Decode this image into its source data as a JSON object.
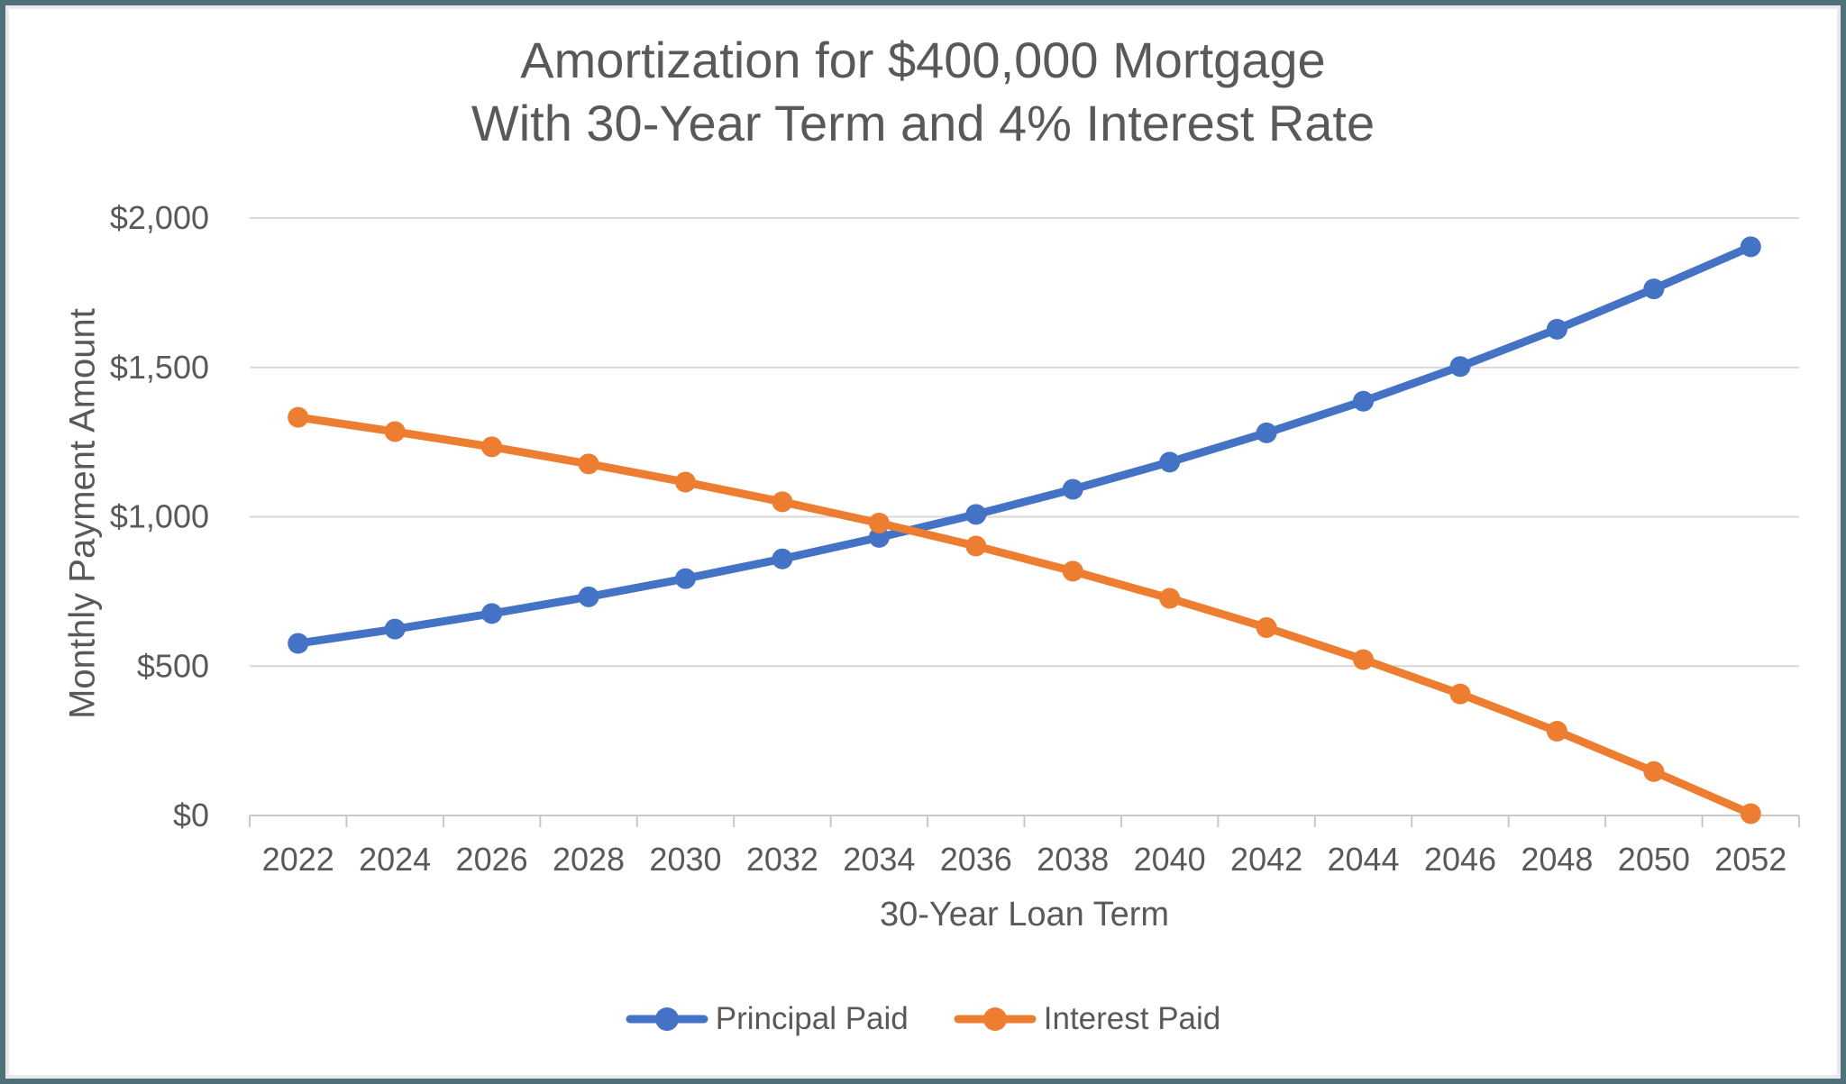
{
  "frame": {
    "border_color": "#4e7078",
    "inner_edge_color": "#e9eaeb",
    "background": "#ffffff"
  },
  "chart_data": {
    "type": "line",
    "title": "Amortization for $400,000 Mortgage",
    "subtitle": "With 30-Year Term and 4% Interest Rate",
    "xlabel": "30-Year Loan Term",
    "ylabel": "Monthly Payment Amount",
    "x": [
      2022,
      2024,
      2026,
      2028,
      2030,
      2032,
      2034,
      2036,
      2038,
      2040,
      2042,
      2044,
      2046,
      2048,
      2050,
      2052
    ],
    "series": [
      {
        "name": "Principal Paid",
        "color": "#4472c4",
        "marker": "circle",
        "values": [
          576,
          624,
          676,
          732,
          793,
          859,
          931,
          1008,
          1092,
          1183,
          1281,
          1387,
          1503,
          1628,
          1763,
          1904
        ]
      },
      {
        "name": "Interest Paid",
        "color": "#ed7d31",
        "marker": "circle",
        "values": [
          1333,
          1285,
          1234,
          1177,
          1116,
          1050,
          979,
          902,
          818,
          727,
          629,
          522,
          407,
          282,
          147,
          6
        ]
      }
    ],
    "ylim": [
      0,
      2000
    ],
    "yticks": {
      "values": [
        0,
        500,
        1000,
        1500,
        2000
      ],
      "labels": [
        "$0",
        "$500",
        "$1,000",
        "$1,500",
        "$2,000"
      ]
    },
    "grid": "horizontal-only",
    "legend_position": "bottom-center",
    "colors": {
      "text": "#595959",
      "gridline": "#d9d9d9",
      "axis": "#c8c8c8"
    }
  }
}
